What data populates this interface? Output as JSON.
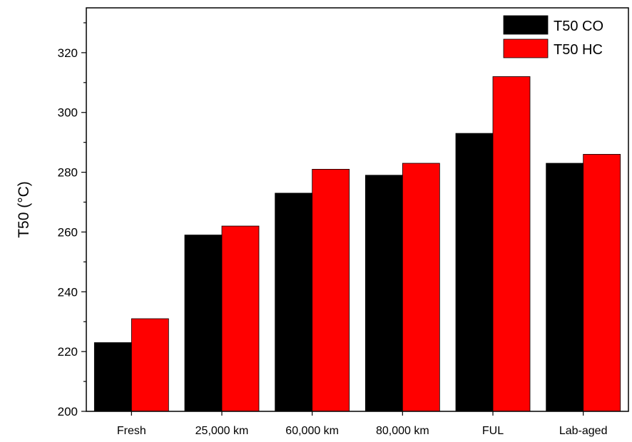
{
  "chart_data": {
    "type": "bar",
    "categories": [
      "Fresh",
      "25,000 km",
      "60,000 km",
      "80,000 km",
      "FUL",
      "Lab-aged"
    ],
    "series": [
      {
        "name": "T50 CO",
        "color": "#000000",
        "values": [
          223,
          259,
          273,
          279,
          293,
          283
        ]
      },
      {
        "name": "T50 HC",
        "color": "#ff0000",
        "values": [
          231,
          262,
          281,
          283,
          312,
          286
        ]
      }
    ],
    "ylabel": "T50 (°C)",
    "xlabel": "",
    "ylim": [
      200,
      335
    ],
    "yticks": [
      200,
      220,
      240,
      260,
      280,
      300,
      320
    ],
    "grid": false,
    "legend_position": "top-right"
  }
}
